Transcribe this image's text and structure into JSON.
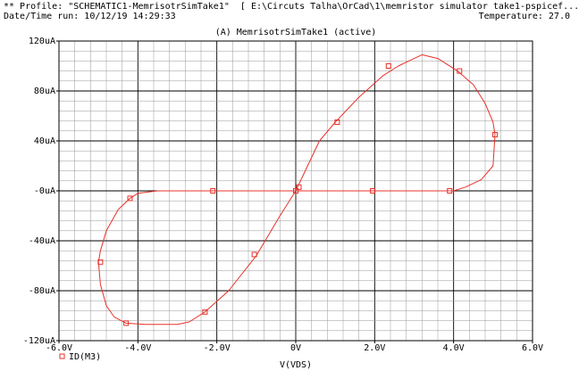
{
  "header": {
    "profile_line": "** Profile: \"SCHEMATIC1-MemrisotrSimTake1\"  [ E:\\Circuts Talha\\OrCad\\1\\memristor simulator take1-pspicef...",
    "date_line": "Date/Time run: 10/12/19 14:29:33",
    "temperature": "Temperature: 27.0"
  },
  "colors": {
    "trace": "#e8322a",
    "grid": "#000000",
    "axis": "#000000"
  },
  "chart_data": {
    "type": "line",
    "title": "(A) MemrisotrSimTake1 (active)",
    "xlabel": "V(VDS)",
    "ylabel": "",
    "xlim": [
      -6.0,
      6.0
    ],
    "ylim": [
      -120,
      120
    ],
    "x_ticks": [
      -6,
      -4,
      -2,
      0,
      2,
      4,
      6
    ],
    "x_tick_labels": [
      "-6.0V",
      "-4.0V",
      "-2.0V",
      "0V",
      "2.0V",
      "4.0V",
      "6.0V"
    ],
    "y_ticks": [
      120,
      80,
      40,
      0,
      -40,
      -80,
      -120
    ],
    "y_tick_labels": [
      "120uA",
      "80uA",
      "40uA",
      "-0uA",
      "-40uA",
      "-80uA",
      "-120uA"
    ],
    "grid": true,
    "legend": {
      "position": "bottom-left",
      "entries": [
        {
          "name": "ID(M3)",
          "marker": "square"
        }
      ]
    },
    "series": [
      {
        "name": "ID(M3)",
        "units": {
          "x": "V",
          "y": "uA"
        },
        "x": [
          0.0,
          0.6,
          1.0,
          1.6,
          2.2,
          2.6,
          3.0,
          3.2,
          3.6,
          4.1,
          4.5,
          4.8,
          5.0,
          5.05,
          5.0,
          4.7,
          4.3,
          4.0,
          3.9,
          3.0,
          1.9,
          1.0,
          0.0,
          -1.0,
          -2.1,
          -3.0,
          -3.5,
          -4.0,
          -4.2,
          -4.5,
          -4.8,
          -4.95,
          -5.0,
          -4.95,
          -4.8,
          -4.6,
          -4.3,
          -3.8,
          -3.0,
          -2.7,
          -2.3,
          -1.7,
          -1.0,
          -0.4,
          0.0
        ],
        "y": [
          0,
          40,
          55,
          75,
          92,
          100,
          106,
          109,
          106,
          96,
          85,
          70,
          55,
          45,
          20,
          9,
          3,
          0,
          0,
          0,
          0,
          0,
          0,
          0,
          0,
          0,
          0,
          -2,
          -6,
          -15,
          -32,
          -48,
          -57,
          -75,
          -92,
          -101,
          -106,
          -107,
          -107,
          -105,
          -97,
          -80,
          -52,
          -20,
          0
        ]
      }
    ],
    "markers": [
      {
        "x": 0.0,
        "y": 0
      },
      {
        "x": 0.08,
        "y": 3
      },
      {
        "x": 1.05,
        "y": 55
      },
      {
        "x": 2.35,
        "y": 100
      },
      {
        "x": 4.15,
        "y": 96
      },
      {
        "x": 5.05,
        "y": 45
      },
      {
        "x": 3.9,
        "y": 0
      },
      {
        "x": 1.95,
        "y": 0
      },
      {
        "x": -2.1,
        "y": 0
      },
      {
        "x": -4.2,
        "y": -6
      },
      {
        "x": -4.95,
        "y": -57
      },
      {
        "x": -4.3,
        "y": -106
      },
      {
        "x": -2.3,
        "y": -97
      },
      {
        "x": -1.05,
        "y": -51
      }
    ]
  }
}
